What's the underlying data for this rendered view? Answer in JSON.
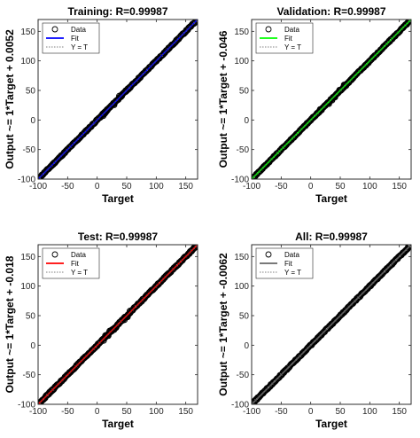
{
  "chart_data": [
    {
      "type": "scatter",
      "title": "Training: R=0.99987",
      "xlabel": "Target",
      "ylabel": "Output ~= 1*Target + 0.0052",
      "xlim": [
        -100,
        170
      ],
      "ylim": [
        -100,
        170
      ],
      "xticks": [
        "-100",
        "-50",
        "0",
        "50",
        "100",
        "150"
      ],
      "yticks": [
        "-100",
        "-50",
        "0",
        "50",
        "100",
        "150"
      ],
      "grid": false,
      "legend_position": "top-left",
      "fit_color": "#0000ff",
      "series": [
        {
          "name": "Data",
          "marker": "open-circle",
          "x_range": [
            -100,
            170
          ],
          "fit_slope": 1,
          "fit_intercept": 0.0052
        },
        {
          "name": "Fit",
          "line": "solid",
          "slope": 1,
          "intercept": 0.0052
        },
        {
          "name": "Y = T",
          "line": "dotted",
          "slope": 1,
          "intercept": 0
        }
      ]
    },
    {
      "type": "scatter",
      "title": "Validation: R=0.99987",
      "xlabel": "Target",
      "ylabel": "Output ~= 1*Target + -0.046",
      "xlim": [
        -100,
        170
      ],
      "ylim": [
        -100,
        170
      ],
      "xticks": [
        "-100",
        "-50",
        "0",
        "50",
        "100",
        "150"
      ],
      "yticks": [
        "-100",
        "-50",
        "0",
        "50",
        "100",
        "150"
      ],
      "grid": false,
      "legend_position": "top-left",
      "fit_color": "#00ff00",
      "series": [
        {
          "name": "Data",
          "marker": "open-circle",
          "x_range": [
            -100,
            170
          ],
          "fit_slope": 1,
          "fit_intercept": -0.046
        },
        {
          "name": "Fit",
          "line": "solid",
          "slope": 1,
          "intercept": -0.046
        },
        {
          "name": "Y = T",
          "line": "dotted",
          "slope": 1,
          "intercept": 0
        }
      ]
    },
    {
      "type": "scatter",
      "title": "Test: R=0.99987",
      "xlabel": "Target",
      "ylabel": "Output ~= 1*Target + -0.018",
      "xlim": [
        -100,
        170
      ],
      "ylim": [
        -100,
        170
      ],
      "xticks": [
        "-100",
        "-50",
        "0",
        "50",
        "100",
        "150"
      ],
      "yticks": [
        "-100",
        "-50",
        "0",
        "50",
        "100",
        "150"
      ],
      "grid": false,
      "legend_position": "top-left",
      "fit_color": "#ff0000",
      "series": [
        {
          "name": "Data",
          "marker": "open-circle",
          "x_range": [
            -100,
            170
          ],
          "fit_slope": 1,
          "fit_intercept": -0.018
        },
        {
          "name": "Fit",
          "line": "solid",
          "slope": 1,
          "intercept": -0.018
        },
        {
          "name": "Y = T",
          "line": "dotted",
          "slope": 1,
          "intercept": 0
        }
      ]
    },
    {
      "type": "scatter",
      "title": "All: R=0.99987",
      "xlabel": "Target",
      "ylabel": "Output ~= 1*Target + -0.0062",
      "xlim": [
        -100,
        170
      ],
      "ylim": [
        -100,
        170
      ],
      "xticks": [
        "-100",
        "-50",
        "0",
        "50",
        "100",
        "150"
      ],
      "yticks": [
        "-100",
        "-50",
        "0",
        "50",
        "100",
        "150"
      ],
      "grid": false,
      "legend_position": "top-left",
      "fit_color": "#666666",
      "series": [
        {
          "name": "Data",
          "marker": "open-circle",
          "x_range": [
            -100,
            170
          ],
          "fit_slope": 1,
          "fit_intercept": -0.0062
        },
        {
          "name": "Fit",
          "line": "solid",
          "slope": 1,
          "intercept": -0.0062
        },
        {
          "name": "Y = T",
          "line": "dotted",
          "slope": 1,
          "intercept": 0
        }
      ]
    }
  ]
}
